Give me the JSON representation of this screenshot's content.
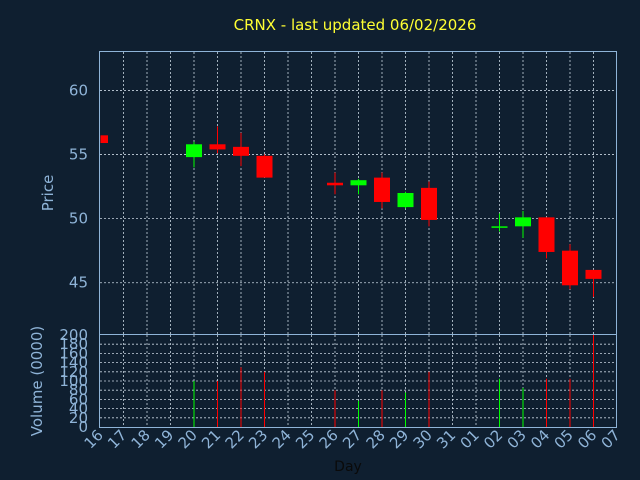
{
  "chart_data": {
    "type": "candlestick",
    "title": "CRNX - last updated 06/02/2026",
    "price_panel": {
      "ylabel": "Price",
      "ylim": [
        41,
        63
      ],
      "yticks": [
        45,
        50,
        55,
        60
      ]
    },
    "volume_panel": {
      "ylabel": "Volume (0000)",
      "ylim": [
        0,
        200
      ],
      "yticks": [
        0,
        20,
        40,
        60,
        80,
        100,
        120,
        140,
        160,
        180,
        200
      ]
    },
    "xlabel": "Day",
    "x_tick_labels": [
      "16",
      "17",
      "18",
      "19",
      "20",
      "21",
      "22",
      "23",
      "24",
      "25",
      "26",
      "27",
      "28",
      "29",
      "30",
      "31",
      "01",
      "02",
      "03",
      "04",
      "05",
      "06",
      "07"
    ],
    "colors": {
      "up": "#00ff00",
      "down": "#ff0000"
    },
    "candles": [
      {
        "x": 0,
        "open": 56.5,
        "high": 56.5,
        "low": 55.9,
        "close": 55.9,
        "volume": 0
      },
      {
        "x": 4,
        "open": 54.8,
        "high": 56.0,
        "low": 54.0,
        "close": 55.8,
        "volume": 100
      },
      {
        "x": 5,
        "open": 55.8,
        "high": 57.2,
        "low": 55.1,
        "close": 55.4,
        "volume": 100
      },
      {
        "x": 6,
        "open": 55.6,
        "high": 56.7,
        "low": 54.1,
        "close": 54.9,
        "volume": 130
      },
      {
        "x": 7,
        "open": 54.9,
        "high": 55.0,
        "low": 53.2,
        "close": 53.2,
        "volume": 120
      },
      {
        "x": 10,
        "open": 52.8,
        "high": 53.6,
        "low": 51.9,
        "close": 52.6,
        "volume": 80
      },
      {
        "x": 11,
        "open": 52.6,
        "high": 53.1,
        "low": 51.9,
        "close": 53.0,
        "volume": 57
      },
      {
        "x": 12,
        "open": 53.2,
        "high": 53.6,
        "low": 50.8,
        "close": 51.3,
        "volume": 80
      },
      {
        "x": 13,
        "open": 50.9,
        "high": 52.1,
        "low": 50.8,
        "close": 52.0,
        "volume": 75
      },
      {
        "x": 14,
        "open": 52.4,
        "high": 52.9,
        "low": 49.4,
        "close": 49.9,
        "volume": 120
      },
      {
        "x": 17,
        "open": 49.3,
        "high": 50.4,
        "low": 49.0,
        "close": 49.4,
        "volume": 105
      },
      {
        "x": 18,
        "open": 49.4,
        "high": 50.6,
        "low": 48.5,
        "close": 50.1,
        "volume": 85
      },
      {
        "x": 19,
        "open": 50.1,
        "high": 50.1,
        "low": 46.9,
        "close": 47.4,
        "volume": 105
      },
      {
        "x": 20,
        "open": 47.5,
        "high": 48.0,
        "low": 44.5,
        "close": 44.8,
        "volume": 105
      },
      {
        "x": 21,
        "open": 46.0,
        "high": 46.0,
        "low": 43.9,
        "close": 45.3,
        "volume": 200
      }
    ]
  }
}
